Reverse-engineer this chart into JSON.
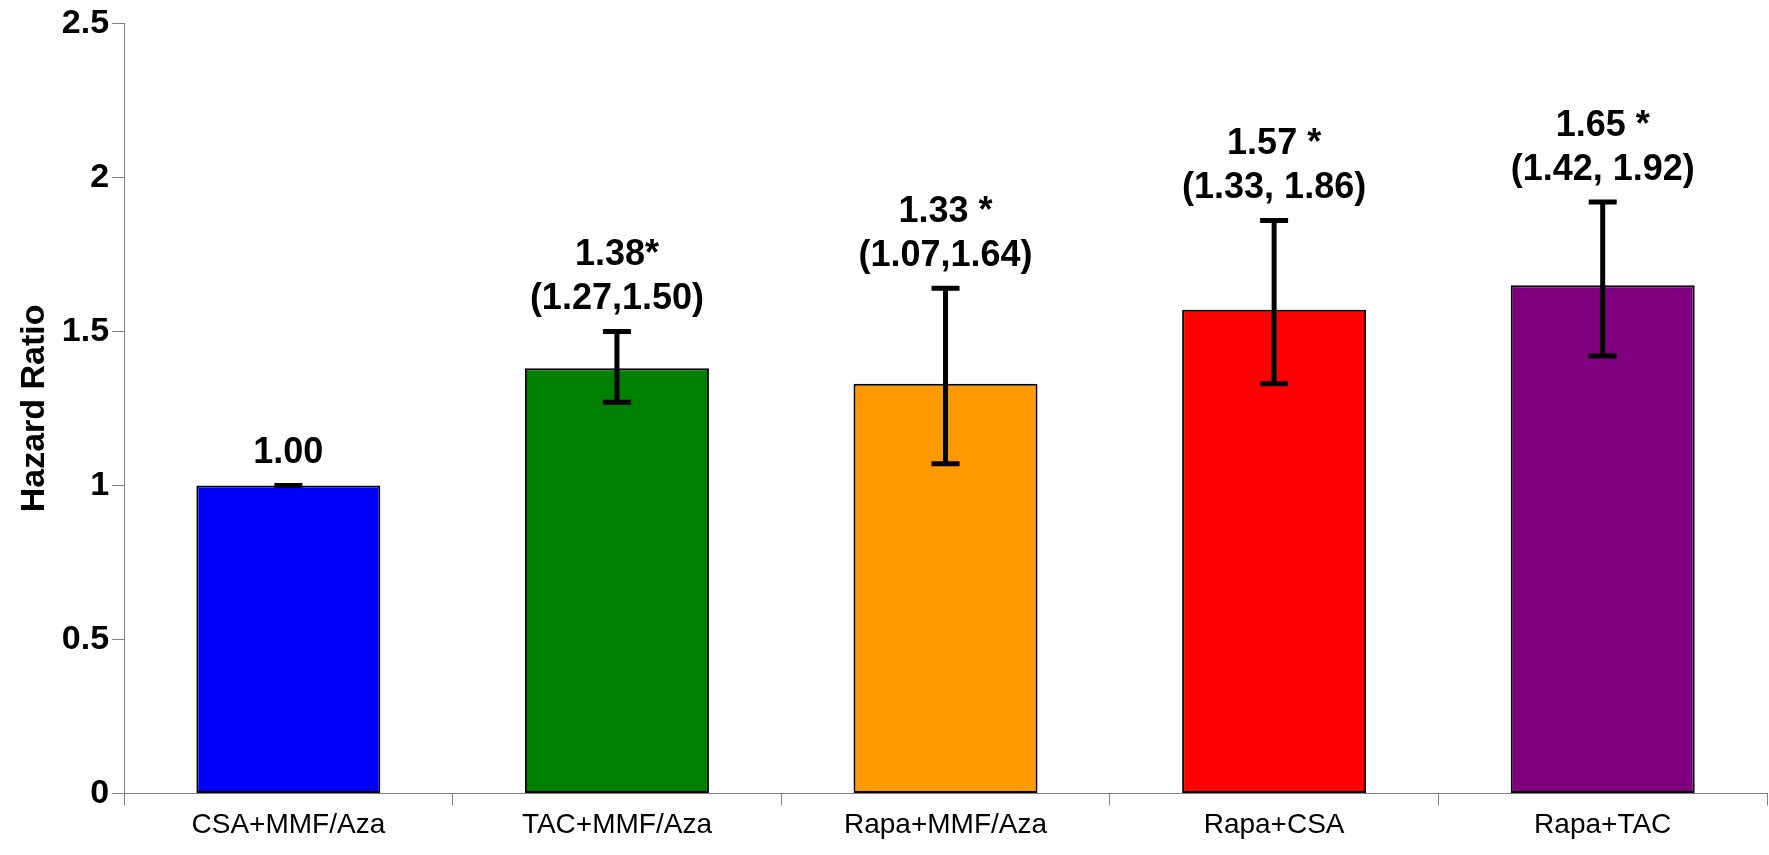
{
  "chart_data": {
    "type": "bar",
    "ylabel": "Hazard Ratio",
    "categories": [
      "CSA+MMF/Aza",
      "TAC+MMF/Aza",
      "Rapa+MMF/Aza",
      "Rapa+CSA",
      "Rapa+TAC"
    ],
    "values": [
      1.0,
      1.38,
      1.33,
      1.57,
      1.65
    ],
    "colors": [
      "#0000ff",
      "#008000",
      "#ff9900",
      "#ff0000",
      "#800080"
    ],
    "errors": [
      [
        1.0,
        1.0
      ],
      [
        1.27,
        1.5
      ],
      [
        1.07,
        1.64
      ],
      [
        1.33,
        1.86
      ],
      [
        1.42,
        1.92
      ]
    ],
    "value_labels": [
      "1.00",
      "1.38*\n(1.27,1.50)",
      "1.33 *\n(1.07,1.64)",
      "1.57 *\n(1.33, 1.86)",
      "1.65 *\n(1.42, 1.92)"
    ],
    "ylim": [
      0,
      2.5
    ],
    "yticks": [
      0,
      0.5,
      1,
      1.5,
      2,
      2.5
    ],
    "grid": false,
    "legend": false
  }
}
